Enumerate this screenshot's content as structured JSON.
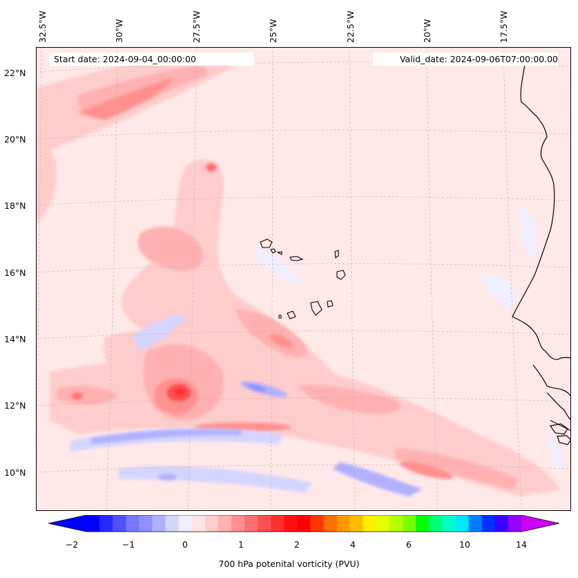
{
  "header": {
    "start_date": "Start date: 2024-09-04_00:00:00",
    "valid_date": "Valid_date: 2024-09-06T07:00:00.00"
  },
  "longitude_labels": [
    "32.5°W",
    "30°W",
    "27.5°W",
    "25°W",
    "22.5°W",
    "20°W",
    "17.5°W"
  ],
  "latitude_labels": [
    "22°N",
    "20°N",
    "18°N",
    "16°N",
    "14°N",
    "12°N",
    "10°N"
  ],
  "colorbar": {
    "title": "700 hPa potenital vorticity (PVU)",
    "tick_labels": [
      "−2",
      "−1",
      "0",
      "1",
      "2",
      "4",
      "6",
      "10",
      "14"
    ],
    "colors": [
      "#0000ff",
      "#2a2aff",
      "#5050ff",
      "#7878ff",
      "#9090ff",
      "#b0b0ff",
      "#d4d4ff",
      "#eeeeff",
      "#ffe4e4",
      "#ffcccc",
      "#ffb0b0",
      "#ff9090",
      "#ff7070",
      "#ff5050",
      "#ff3030",
      "#ff1010",
      "#ff0000",
      "#ff3800",
      "#ff7000",
      "#ff9a00",
      "#ffbf00",
      "#fff000",
      "#e6ff00",
      "#b4ff00",
      "#78ff00",
      "#00ff00",
      "#00ff78",
      "#00ffc8",
      "#00e6ff",
      "#0080ff",
      "#0030ff",
      "#3c00ff",
      "#9600ff"
    ],
    "under_color": "#0000ff",
    "over_color": "#cc00ff"
  },
  "map": {
    "background_color": "#ffe8e8",
    "coastline_color": "#000000",
    "gridline_color": "#b0b0b0"
  }
}
